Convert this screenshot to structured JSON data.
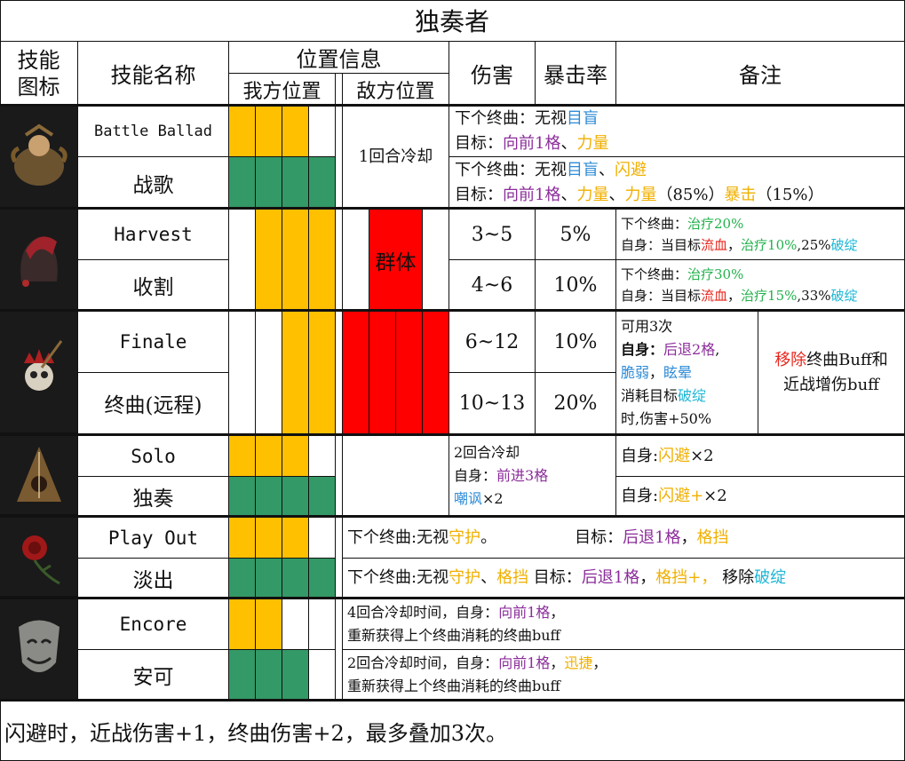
{
  "title": "独奏者",
  "headers": {
    "icon": [
      "技能",
      "图标"
    ],
    "name": "技能名称",
    "position": "位置信息",
    "own_pos": "我方位置",
    "enemy_pos": "敌方位置",
    "damage": "伤害",
    "crit": "暴击率",
    "notes": "备注"
  },
  "skills": [
    {
      "icon": "bard-icon",
      "en": "Battle Ballad",
      "zh": "战歌",
      "shared": "1回合冷却",
      "note1a": [
        "下个终曲：无视",
        "目盲"
      ],
      "note1b": [
        "目标：",
        "向前1格",
        "、",
        "力量"
      ],
      "note2a": [
        "下个终曲：无视",
        "目盲",
        "、",
        "闪避"
      ],
      "note2b": [
        "目标：",
        "向前1格",
        "、",
        "力量",
        "、",
        "力量",
        "（85%）",
        "暴击",
        "（15%）"
      ]
    },
    {
      "icon": "jester-hood-icon",
      "en": "Harvest",
      "zh": "收割",
      "target": "群体",
      "dmg1": "3~5",
      "crit1": "5%",
      "dmg2": "4~6",
      "crit2": "10%",
      "note1a": [
        "下个终曲：",
        "治疗20%"
      ],
      "note1b": [
        "自身：当目标",
        "流血",
        "，",
        "治疗10%",
        ",25%",
        "破绽"
      ],
      "note2a": [
        "下个终曲：",
        "治疗30%"
      ],
      "note2b": [
        "自身：当目标",
        "流血",
        "，",
        "治疗15%",
        ",33%",
        "破绽"
      ]
    },
    {
      "icon": "skull-crown-icon",
      "en": "Finale",
      "zh": "终曲(远程)",
      "dmg1": "6~12",
      "crit1": "10%",
      "dmg2": "10~13",
      "crit2": "20%",
      "note_a": [
        "可用3次"
      ],
      "note_b": [
        "自身：",
        "后退2格",
        ","
      ],
      "note_c": [
        "脆弱",
        "，",
        "眩晕"
      ],
      "note_d": [
        "消耗目标",
        "破绽"
      ],
      "note_e": [
        "时,伤害+50%"
      ],
      "note_right": [
        "移除",
        "终曲Buff和",
        "近战增伤buff"
      ]
    },
    {
      "icon": "lute-icon",
      "en": "Solo",
      "zh": "独奏",
      "shared_a": "2回合冷却",
      "shared_b": [
        "自身：",
        "前进3格"
      ],
      "shared_c": [
        "嘲讽",
        "×2"
      ],
      "note1": [
        "自身:",
        "闪避",
        "×2"
      ],
      "note2": [
        "自身:",
        "闪避+",
        "×2"
      ]
    },
    {
      "icon": "rose-icon",
      "en": "Play Out",
      "zh": "淡出",
      "note1": [
        "下个终曲:无视",
        "守护",
        "。",
        "目标：",
        "后退1格",
        "，",
        "格挡"
      ],
      "note2": [
        "下个终曲:无视",
        "守护",
        "、",
        "格挡",
        " 目标：",
        "后退1格",
        "，",
        "格挡+",
        "，",
        " 移除",
        "破绽"
      ]
    },
    {
      "icon": "mask-icon",
      "en": "Encore",
      "zh": "安可",
      "note1a": [
        "4回合冷却时间，自身：",
        "向前1格",
        "，"
      ],
      "note1b": [
        "重新获得上个终曲消耗的终曲buff"
      ],
      "note2a": [
        "2回合冷却时间，自身：",
        "向前1格",
        "，",
        "迅捷",
        "，"
      ],
      "note2b": [
        "重新获得上个终曲消耗的终曲buff"
      ]
    }
  ],
  "footer": "闪避时，近战伤害+1，终曲伤害+2，最多叠加3次。",
  "colors": {
    "yellow": "#ffc000",
    "green": "#339966",
    "red": "#ff0000"
  }
}
